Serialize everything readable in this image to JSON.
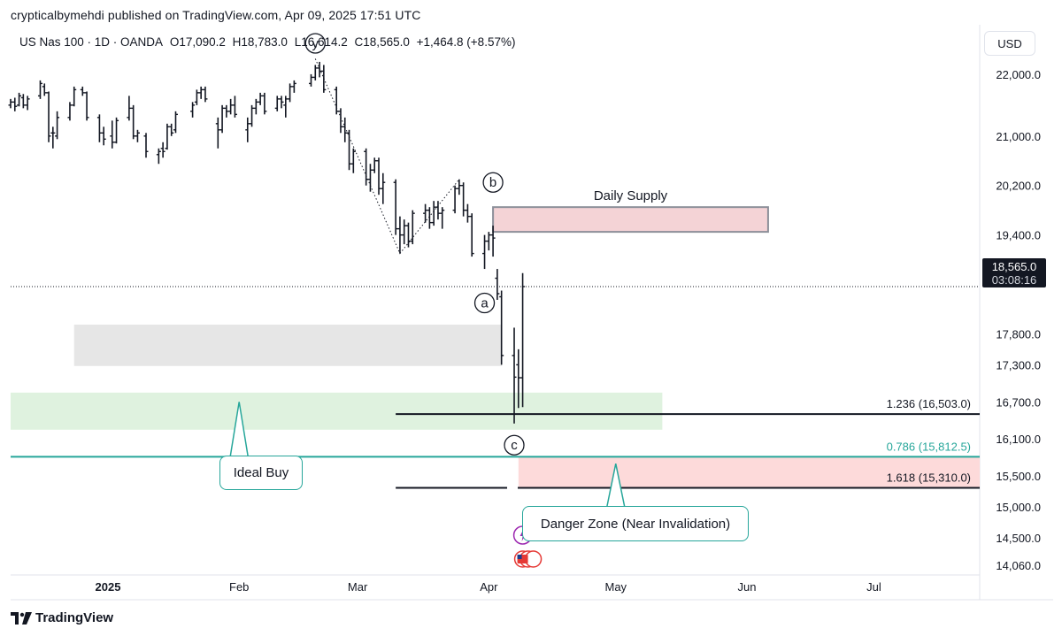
{
  "header": {
    "publisher_line": "crypticalbymehdi published on TradingView.com, Apr 09, 2025 17:51 UTC"
  },
  "legend": {
    "symbol": "US Nas 100 · 1D · OANDA",
    "open": "O17,090.2",
    "high": "H18,783.0",
    "low": "L16,614.2",
    "close": "C18,565.0",
    "change": "+1,464.8 (+8.57%)"
  },
  "currency_button": "USD",
  "price_tag": {
    "price": "18,565.0",
    "countdown": "03:08:16"
  },
  "footer": {
    "logo_text": "TradingView"
  },
  "colors": {
    "up_candle": "#131722",
    "teal": "#26a69a",
    "supply_zone": "#f4d3d6",
    "danger_zone": "#fddada",
    "ideal_buy_zone": "#dff2df",
    "grey_zone": "#e6e6e6",
    "fib_line": "#131722"
  },
  "chart_data": {
    "type": "candlestick",
    "symbol": "US Nas 100",
    "timeframe": "1D",
    "y_axis": {
      "min": 13900,
      "max": 22800,
      "tick_labels": [
        "22,000.0",
        "21,000.0",
        "20,200.0",
        "19,400.0",
        "17,800.0",
        "17,300.0",
        "16,700.0",
        "16,100.0",
        "15,500.0",
        "15,000.0",
        "14,500.0",
        "14,060.0"
      ],
      "tick_values": [
        22000,
        21000,
        20200,
        19400,
        17800,
        17300,
        16700,
        16100,
        15500,
        15000,
        14500,
        14060
      ]
    },
    "x_axis": {
      "date_range": [
        "2024-12-09",
        "2025-07-26"
      ],
      "labels": [
        {
          "text": "2025",
          "date": "2025-01-01",
          "bold": true
        },
        {
          "text": "Feb",
          "date": "2025-02-01"
        },
        {
          "text": "Mar",
          "date": "2025-03-01"
        },
        {
          "text": "Apr",
          "date": "2025-04-01"
        },
        {
          "text": "May",
          "date": "2025-05-01"
        },
        {
          "text": "Jun",
          "date": "2025-06-01"
        },
        {
          "text": "Jul",
          "date": "2025-07-01"
        }
      ]
    },
    "last_price": 18565.0,
    "candles": [
      {
        "d": "2024-12-09",
        "o": 21500,
        "h": 21600,
        "l": 21450,
        "c": 21550
      },
      {
        "d": "2024-12-10",
        "o": 21550,
        "h": 21620,
        "l": 21400,
        "c": 21480
      },
      {
        "d": "2024-12-11",
        "o": 21500,
        "h": 21700,
        "l": 21480,
        "c": 21650
      },
      {
        "d": "2024-12-12",
        "o": 21620,
        "h": 21680,
        "l": 21450,
        "c": 21500
      },
      {
        "d": "2024-12-13",
        "o": 21500,
        "h": 21650,
        "l": 21420,
        "c": 21600
      },
      {
        "d": "2024-12-16",
        "o": 21650,
        "h": 21900,
        "l": 21600,
        "c": 21850
      },
      {
        "d": "2024-12-17",
        "o": 21800,
        "h": 21850,
        "l": 21650,
        "c": 21700
      },
      {
        "d": "2024-12-18",
        "o": 21700,
        "h": 21720,
        "l": 20900,
        "c": 21000
      },
      {
        "d": "2024-12-19",
        "o": 21050,
        "h": 21150,
        "l": 20800,
        "c": 21050
      },
      {
        "d": "2024-12-20",
        "o": 21000,
        "h": 21400,
        "l": 20950,
        "c": 21300
      },
      {
        "d": "2024-12-23",
        "o": 21300,
        "h": 21550,
        "l": 21250,
        "c": 21500
      },
      {
        "d": "2024-12-24",
        "o": 21500,
        "h": 21800,
        "l": 21480,
        "c": 21750
      },
      {
        "d": "2024-12-26",
        "o": 21750,
        "h": 21800,
        "l": 21650,
        "c": 21700
      },
      {
        "d": "2024-12-27",
        "o": 21700,
        "h": 21720,
        "l": 21250,
        "c": 21300
      },
      {
        "d": "2024-12-30",
        "o": 21300,
        "h": 21350,
        "l": 20900,
        "c": 21050
      },
      {
        "d": "2024-12-31",
        "o": 21050,
        "h": 21150,
        "l": 20850,
        "c": 20950
      },
      {
        "d": "2025-01-02",
        "o": 21000,
        "h": 21250,
        "l": 20800,
        "c": 20900
      },
      {
        "d": "2025-01-03",
        "o": 20900,
        "h": 21300,
        "l": 20880,
        "c": 21250
      },
      {
        "d": "2025-01-06",
        "o": 21300,
        "h": 21650,
        "l": 21250,
        "c": 21450
      },
      {
        "d": "2025-01-07",
        "o": 21450,
        "h": 21500,
        "l": 20950,
        "c": 21000
      },
      {
        "d": "2025-01-08",
        "o": 21000,
        "h": 21100,
        "l": 20900,
        "c": 21050
      },
      {
        "d": "2025-01-10",
        "o": 21000,
        "h": 21050,
        "l": 20650,
        "c": 20750
      },
      {
        "d": "2025-01-13",
        "o": 20700,
        "h": 20800,
        "l": 20550,
        "c": 20750
      },
      {
        "d": "2025-01-14",
        "o": 20800,
        "h": 20900,
        "l": 20650,
        "c": 20750
      },
      {
        "d": "2025-01-15",
        "o": 20800,
        "h": 21200,
        "l": 20780,
        "c": 21150
      },
      {
        "d": "2025-01-16",
        "o": 21150,
        "h": 21200,
        "l": 21000,
        "c": 21050
      },
      {
        "d": "2025-01-17",
        "o": 21100,
        "h": 21400,
        "l": 21050,
        "c": 21350
      },
      {
        "d": "2025-01-21",
        "o": 21400,
        "h": 21550,
        "l": 21300,
        "c": 21500
      },
      {
        "d": "2025-01-22",
        "o": 21550,
        "h": 21750,
        "l": 21500,
        "c": 21700
      },
      {
        "d": "2025-01-23",
        "o": 21700,
        "h": 21800,
        "l": 21600,
        "c": 21750
      },
      {
        "d": "2025-01-24",
        "o": 21750,
        "h": 21800,
        "l": 21550,
        "c": 21600
      },
      {
        "d": "2025-01-27",
        "o": 21200,
        "h": 21300,
        "l": 20800,
        "c": 21100
      },
      {
        "d": "2025-01-28",
        "o": 21100,
        "h": 21500,
        "l": 21050,
        "c": 21450
      },
      {
        "d": "2025-01-29",
        "o": 21450,
        "h": 21500,
        "l": 21300,
        "c": 21400
      },
      {
        "d": "2025-01-30",
        "o": 21400,
        "h": 21600,
        "l": 21350,
        "c": 21500
      },
      {
        "d": "2025-01-31",
        "o": 21500,
        "h": 21650,
        "l": 21300,
        "c": 21350
      },
      {
        "d": "2025-02-03",
        "o": 21100,
        "h": 21300,
        "l": 20900,
        "c": 21200
      },
      {
        "d": "2025-02-04",
        "o": 21200,
        "h": 21500,
        "l": 21150,
        "c": 21450
      },
      {
        "d": "2025-02-05",
        "o": 21450,
        "h": 21600,
        "l": 21350,
        "c": 21550
      },
      {
        "d": "2025-02-06",
        "o": 21550,
        "h": 21700,
        "l": 21500,
        "c": 21650
      },
      {
        "d": "2025-02-07",
        "o": 21650,
        "h": 21700,
        "l": 21350,
        "c": 21400
      },
      {
        "d": "2025-02-10",
        "o": 21450,
        "h": 21650,
        "l": 21400,
        "c": 21600
      },
      {
        "d": "2025-02-11",
        "o": 21600,
        "h": 21650,
        "l": 21450,
        "c": 21550
      },
      {
        "d": "2025-02-12",
        "o": 21500,
        "h": 21650,
        "l": 21300,
        "c": 21600
      },
      {
        "d": "2025-02-13",
        "o": 21600,
        "h": 21850,
        "l": 21550,
        "c": 21800
      },
      {
        "d": "2025-02-14",
        "o": 21800,
        "h": 21900,
        "l": 21700,
        "c": 21850
      },
      {
        "d": "2025-02-18",
        "o": 21850,
        "h": 22000,
        "l": 21800,
        "c": 21950
      },
      {
        "d": "2025-02-19",
        "o": 21950,
        "h": 22150,
        "l": 21900,
        "c": 22100
      },
      {
        "d": "2025-02-20",
        "o": 22100,
        "h": 22200,
        "l": 21950,
        "c": 22050
      },
      {
        "d": "2025-02-21",
        "o": 22050,
        "h": 22150,
        "l": 21700,
        "c": 21750
      },
      {
        "d": "2025-02-24",
        "o": 21750,
        "h": 21800,
        "l": 21350,
        "c": 21400
      },
      {
        "d": "2025-02-25",
        "o": 21400,
        "h": 21450,
        "l": 21050,
        "c": 21150
      },
      {
        "d": "2025-02-26",
        "o": 21150,
        "h": 21300,
        "l": 20900,
        "c": 21050
      },
      {
        "d": "2025-02-27",
        "o": 21050,
        "h": 21100,
        "l": 20450,
        "c": 20550
      },
      {
        "d": "2025-02-28",
        "o": 20550,
        "h": 20800,
        "l": 20400,
        "c": 20750
      },
      {
        "d": "2025-03-03",
        "o": 20750,
        "h": 20800,
        "l": 20200,
        "c": 20300
      },
      {
        "d": "2025-03-04",
        "o": 20300,
        "h": 20550,
        "l": 20100,
        "c": 20450
      },
      {
        "d": "2025-03-05",
        "o": 20450,
        "h": 20650,
        "l": 20400,
        "c": 20600
      },
      {
        "d": "2025-03-06",
        "o": 20600,
        "h": 20650,
        "l": 20050,
        "c": 20150
      },
      {
        "d": "2025-03-07",
        "o": 20150,
        "h": 20400,
        "l": 19900,
        "c": 20250
      },
      {
        "d": "2025-03-10",
        "o": 20250,
        "h": 20300,
        "l": 19400,
        "c": 19500
      },
      {
        "d": "2025-03-11",
        "o": 19500,
        "h": 19700,
        "l": 19100,
        "c": 19400
      },
      {
        "d": "2025-03-12",
        "o": 19400,
        "h": 19650,
        "l": 19250,
        "c": 19550
      },
      {
        "d": "2025-03-13",
        "o": 19550,
        "h": 19600,
        "l": 19200,
        "c": 19300
      },
      {
        "d": "2025-03-14",
        "o": 19300,
        "h": 19800,
        "l": 19250,
        "c": 19750
      },
      {
        "d": "2025-03-17",
        "o": 19750,
        "h": 19900,
        "l": 19600,
        "c": 19800
      },
      {
        "d": "2025-03-18",
        "o": 19800,
        "h": 19850,
        "l": 19500,
        "c": 19600
      },
      {
        "d": "2025-03-19",
        "o": 19600,
        "h": 19950,
        "l": 19550,
        "c": 19850
      },
      {
        "d": "2025-03-20",
        "o": 19850,
        "h": 19950,
        "l": 19650,
        "c": 19750
      },
      {
        "d": "2025-03-21",
        "o": 19750,
        "h": 19850,
        "l": 19500,
        "c": 19800
      },
      {
        "d": "2025-03-24",
        "o": 19800,
        "h": 20200,
        "l": 19750,
        "c": 20150
      },
      {
        "d": "2025-03-25",
        "o": 20150,
        "h": 20300,
        "l": 20050,
        "c": 20200
      },
      {
        "d": "2025-03-26",
        "o": 20200,
        "h": 20250,
        "l": 19700,
        "c": 19800
      },
      {
        "d": "2025-03-27",
        "o": 19800,
        "h": 19900,
        "l": 19600,
        "c": 19700
      },
      {
        "d": "2025-03-28",
        "o": 19700,
        "h": 19750,
        "l": 19050,
        "c": 19100
      },
      {
        "d": "2025-03-31",
        "o": 19100,
        "h": 19400,
        "l": 18850,
        "c": 19300
      },
      {
        "d": "2025-04-01",
        "o": 19300,
        "h": 19450,
        "l": 19150,
        "c": 19400
      },
      {
        "d": "2025-04-02",
        "o": 19400,
        "h": 19550,
        "l": 19050,
        "c": 19350
      },
      {
        "d": "2025-04-03",
        "o": 18700,
        "h": 18850,
        "l": 18350,
        "c": 18450
      },
      {
        "d": "2025-04-04",
        "o": 18400,
        "h": 18500,
        "l": 17300,
        "c": 17450
      },
      {
        "d": "2025-04-07",
        "o": 17450,
        "h": 17900,
        "l": 16350,
        "c": 17100
      },
      {
        "d": "2025-04-08",
        "o": 17300,
        "h": 17550,
        "l": 16600,
        "c": 17090
      },
      {
        "d": "2025-04-09",
        "o": 17090.2,
        "h": 18783.0,
        "l": 16614.2,
        "c": 18565.0
      }
    ],
    "zones": [
      {
        "label": "Daily Supply",
        "start": "2025-04-02",
        "end": "2025-06-06",
        "top": 19850,
        "bottom": 19450,
        "kind": "supply"
      },
      {
        "label": "",
        "start": "2024-12-24",
        "end": "2025-04-04",
        "top": 17950,
        "bottom": 17280,
        "kind": "grey"
      },
      {
        "label": "",
        "start": "2024-12-09",
        "end": "2025-05-12",
        "top": 16850,
        "bottom": 16250,
        "kind": "ideal_buy"
      },
      {
        "label": "",
        "start": "2025-04-08",
        "end": "2025-07-26",
        "top": 15812.5,
        "bottom": 15310,
        "kind": "danger"
      }
    ],
    "fib_levels": [
      {
        "ratio": "1.236",
        "text": "1.236 (16,503.0)",
        "value": 16503.0,
        "start": "2025-03-10",
        "color": "#131722"
      },
      {
        "ratio": "0.786",
        "text": "0.786 (15,812.5)",
        "value": 15812.5,
        "start": "2024-12-09",
        "color": "#26a69a"
      },
      {
        "ratio": "1.618",
        "text": "1.618 (15,310.0)",
        "value": 15310.0,
        "start": "2025-03-10",
        "color": "#131722",
        "gap_until": "2025-04-07"
      }
    ],
    "wave_labels": [
      {
        "text": "y",
        "date": "2025-02-19",
        "price": 22500
      },
      {
        "text": "b",
        "date": "2025-04-02",
        "price": 20250
      },
      {
        "text": "a",
        "date": "2025-03-31",
        "price": 18300
      },
      {
        "text": "c",
        "date": "2025-04-07",
        "price": 16000
      }
    ],
    "dotted_paths": [
      [
        {
          "date": "2025-02-19",
          "price": 22250
        },
        {
          "date": "2025-03-11",
          "price": 19100
        },
        {
          "date": "2025-03-25",
          "price": 20300
        }
      ]
    ],
    "callouts": [
      {
        "text": "Ideal Buy",
        "anchor_date": "2025-02-01",
        "anchor_price": 16700
      },
      {
        "text": "Danger Zone (Near Invalidation)",
        "anchor_date": "2025-05-01",
        "anchor_price": 15700
      }
    ]
  }
}
